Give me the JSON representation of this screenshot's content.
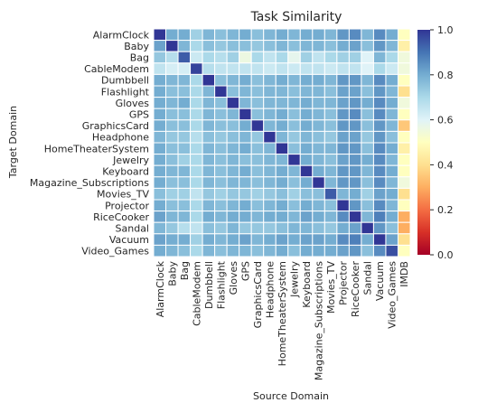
{
  "chart_data": {
    "type": "heatmap",
    "title": "Task Similarity",
    "xlabel": "Source Domain",
    "ylabel": "Target Domain",
    "rows": [
      "AlarmClock",
      "Baby",
      "Bag",
      "CableModem",
      "Dumbbell",
      "Flashlight",
      "Gloves",
      "GPS",
      "GraphicsCard",
      "Headphone",
      "HomeTheaterSystem",
      "Jewelry",
      "Keyboard",
      "Magazine_Subscriptions",
      "Movies_TV",
      "Projector",
      "RiceCooker",
      "Sandal",
      "Vacuum",
      "Video_Games"
    ],
    "columns": [
      "AlarmClock",
      "Baby",
      "Bag",
      "CableModem",
      "Dumbbell",
      "Flashlight",
      "Gloves",
      "GPS",
      "GraphicsCard",
      "Headphone",
      "HomeTheaterSystem",
      "Jewelry",
      "Keyboard",
      "Magazine_Subscriptions",
      "Movies_TV",
      "Projector",
      "RiceCooker",
      "Sandal",
      "Vacuum",
      "Video_Games",
      "IMDB"
    ],
    "values": [
      [
        1.0,
        0.8,
        0.8,
        0.72,
        0.78,
        0.76,
        0.78,
        0.8,
        0.76,
        0.78,
        0.8,
        0.78,
        0.8,
        0.8,
        0.78,
        0.84,
        0.86,
        0.78,
        0.86,
        0.8,
        0.5
      ],
      [
        0.82,
        1.0,
        0.78,
        0.7,
        0.76,
        0.74,
        0.76,
        0.76,
        0.74,
        0.76,
        0.78,
        0.76,
        0.78,
        0.78,
        0.76,
        0.8,
        0.82,
        0.76,
        0.84,
        0.78,
        0.45
      ],
      [
        0.74,
        0.68,
        0.94,
        0.64,
        0.7,
        0.68,
        0.72,
        0.56,
        0.7,
        0.66,
        0.7,
        0.58,
        0.72,
        0.66,
        0.7,
        0.72,
        0.72,
        0.6,
        0.78,
        0.7,
        0.55
      ],
      [
        0.66,
        0.62,
        0.62,
        0.98,
        0.68,
        0.66,
        0.66,
        0.66,
        0.66,
        0.64,
        0.66,
        0.64,
        0.66,
        0.66,
        0.64,
        0.66,
        0.66,
        0.6,
        0.7,
        0.64,
        0.55
      ],
      [
        0.8,
        0.78,
        0.78,
        0.7,
        1.0,
        0.76,
        0.78,
        0.8,
        0.76,
        0.78,
        0.8,
        0.78,
        0.8,
        0.8,
        0.78,
        0.84,
        0.84,
        0.78,
        0.86,
        0.8,
        0.5
      ],
      [
        0.8,
        0.76,
        0.76,
        0.7,
        0.78,
        1.0,
        0.76,
        0.78,
        0.76,
        0.78,
        0.78,
        0.76,
        0.78,
        0.78,
        0.76,
        0.82,
        0.82,
        0.76,
        0.84,
        0.78,
        0.4
      ],
      [
        0.8,
        0.78,
        0.8,
        0.7,
        0.78,
        0.76,
        1.0,
        0.78,
        0.76,
        0.78,
        0.78,
        0.78,
        0.8,
        0.78,
        0.78,
        0.82,
        0.84,
        0.8,
        0.86,
        0.8,
        0.55
      ],
      [
        0.8,
        0.76,
        0.76,
        0.7,
        0.78,
        0.76,
        0.78,
        1.0,
        0.76,
        0.78,
        0.8,
        0.76,
        0.8,
        0.78,
        0.76,
        0.84,
        0.86,
        0.76,
        0.86,
        0.78,
        0.5
      ],
      [
        0.8,
        0.76,
        0.76,
        0.7,
        0.78,
        0.76,
        0.76,
        0.8,
        1.0,
        0.78,
        0.8,
        0.76,
        0.8,
        0.78,
        0.76,
        0.84,
        0.84,
        0.76,
        0.84,
        0.78,
        0.35
      ],
      [
        0.78,
        0.74,
        0.74,
        0.68,
        0.76,
        0.74,
        0.76,
        0.78,
        0.74,
        1.0,
        0.78,
        0.74,
        0.78,
        0.76,
        0.74,
        0.82,
        0.82,
        0.74,
        0.84,
        0.76,
        0.5
      ],
      [
        0.8,
        0.76,
        0.76,
        0.7,
        0.78,
        0.76,
        0.78,
        0.8,
        0.76,
        0.78,
        1.0,
        0.76,
        0.8,
        0.78,
        0.78,
        0.84,
        0.84,
        0.76,
        0.86,
        0.8,
        0.45
      ],
      [
        0.8,
        0.76,
        0.72,
        0.7,
        0.78,
        0.76,
        0.78,
        0.76,
        0.76,
        0.78,
        0.78,
        1.0,
        0.8,
        0.78,
        0.76,
        0.82,
        0.84,
        0.8,
        0.86,
        0.78,
        0.5
      ],
      [
        0.8,
        0.78,
        0.78,
        0.7,
        0.78,
        0.76,
        0.78,
        0.8,
        0.76,
        0.78,
        0.8,
        0.78,
        1.0,
        0.8,
        0.78,
        0.84,
        0.84,
        0.78,
        0.86,
        0.8,
        0.5
      ],
      [
        0.8,
        0.76,
        0.76,
        0.7,
        0.78,
        0.76,
        0.78,
        0.78,
        0.76,
        0.78,
        0.8,
        0.76,
        0.8,
        1.0,
        0.78,
        0.84,
        0.84,
        0.76,
        0.86,
        0.78,
        0.55
      ],
      [
        0.76,
        0.72,
        0.72,
        0.66,
        0.74,
        0.72,
        0.74,
        0.74,
        0.72,
        0.74,
        0.76,
        0.72,
        0.76,
        0.76,
        0.94,
        0.78,
        0.8,
        0.72,
        0.82,
        0.8,
        0.4
      ],
      [
        0.8,
        0.76,
        0.76,
        0.7,
        0.78,
        0.76,
        0.78,
        0.8,
        0.76,
        0.78,
        0.8,
        0.76,
        0.8,
        0.78,
        0.76,
        1.0,
        0.84,
        0.76,
        0.86,
        0.78,
        0.5
      ],
      [
        0.82,
        0.78,
        0.78,
        0.7,
        0.8,
        0.78,
        0.8,
        0.8,
        0.78,
        0.8,
        0.8,
        0.78,
        0.82,
        0.8,
        0.78,
        0.86,
        1.0,
        0.78,
        0.88,
        0.8,
        0.3
      ],
      [
        0.78,
        0.74,
        0.68,
        0.66,
        0.76,
        0.74,
        0.78,
        0.74,
        0.74,
        0.74,
        0.76,
        0.78,
        0.78,
        0.76,
        0.74,
        0.8,
        0.82,
        1.0,
        0.84,
        0.76,
        0.3
      ],
      [
        0.82,
        0.8,
        0.8,
        0.72,
        0.8,
        0.78,
        0.8,
        0.82,
        0.78,
        0.8,
        0.82,
        0.8,
        0.82,
        0.82,
        0.8,
        0.86,
        0.88,
        0.8,
        1.0,
        0.82,
        0.4
      ],
      [
        0.8,
        0.78,
        0.76,
        0.7,
        0.78,
        0.76,
        0.78,
        0.78,
        0.76,
        0.78,
        0.8,
        0.76,
        0.8,
        0.8,
        0.8,
        0.82,
        0.84,
        0.76,
        0.86,
        0.96,
        0.5
      ]
    ],
    "vmin": 0.0,
    "vmax": 1.0,
    "colorbar_ticks": [
      "0.0",
      "0.2",
      "0.4",
      "0.6",
      "0.8",
      "1.0"
    ],
    "colormap": [
      "#a50026",
      "#d73027",
      "#f46d43",
      "#fdae61",
      "#fee090",
      "#ffffbf",
      "#e0f3f8",
      "#abd9e9",
      "#74add1",
      "#4575b4",
      "#313695"
    ]
  }
}
